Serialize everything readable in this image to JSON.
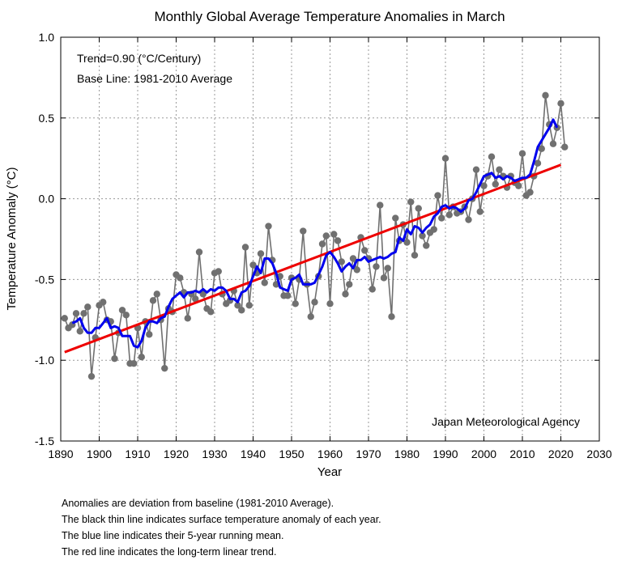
{
  "chart_data": {
    "type": "line",
    "title": "Monthly Global Average Temperature Anomalies in March",
    "xlabel": "Year",
    "ylabel": "Temperature Anomaly (°C)",
    "xlim": [
      1890,
      2030
    ],
    "ylim": [
      -1.5,
      1.0
    ],
    "xticks": [
      1890,
      1900,
      1910,
      1920,
      1930,
      1940,
      1950,
      1960,
      1970,
      1980,
      1990,
      2000,
      2010,
      2020,
      2030
    ],
    "yticks": [
      -1.5,
      -1.0,
      -0.5,
      0.0,
      0.5,
      1.0
    ],
    "xtick_labels": [
      "1890",
      "1900",
      "1910",
      "1920",
      "1930",
      "1940",
      "1950",
      "1960",
      "1970",
      "1980",
      "1990",
      "2000",
      "2010",
      "2020",
      "2030"
    ],
    "ytick_labels": [
      "-1.5",
      "-1.0",
      "-0.5",
      "0.0",
      "0.5",
      "1.0"
    ],
    "grid": true,
    "annotations": {
      "trend": "Trend=0.90 (°C/Century)",
      "baseline": "Base Line: 1981-2010 Average",
      "source": "Japan Meteorological Agency"
    },
    "series": [
      {
        "role": "annual",
        "color": "#707070",
        "x": [
          1891,
          1892,
          1893,
          1894,
          1895,
          1896,
          1897,
          1898,
          1899,
          1900,
          1901,
          1902,
          1903,
          1904,
          1905,
          1906,
          1907,
          1908,
          1909,
          1910,
          1911,
          1912,
          1913,
          1914,
          1915,
          1916,
          1917,
          1918,
          1919,
          1920,
          1921,
          1922,
          1923,
          1924,
          1925,
          1926,
          1927,
          1928,
          1929,
          1930,
          1931,
          1932,
          1933,
          1934,
          1935,
          1936,
          1937,
          1938,
          1939,
          1940,
          1941,
          1942,
          1943,
          1944,
          1945,
          1946,
          1947,
          1948,
          1949,
          1950,
          1951,
          1952,
          1953,
          1954,
          1955,
          1956,
          1957,
          1958,
          1959,
          1960,
          1961,
          1962,
          1963,
          1964,
          1965,
          1966,
          1967,
          1968,
          1969,
          1970,
          1971,
          1972,
          1973,
          1974,
          1975,
          1976,
          1977,
          1978,
          1979,
          1980,
          1981,
          1982,
          1983,
          1984,
          1985,
          1986,
          1987,
          1988,
          1989,
          1990,
          1991,
          1992,
          1993,
          1994,
          1995,
          1996,
          1997,
          1998,
          1999,
          2000,
          2001,
          2002,
          2003,
          2004,
          2005,
          2006,
          2007,
          2008,
          2009,
          2010,
          2011,
          2012,
          2013,
          2014,
          2015,
          2016,
          2017,
          2018,
          2019,
          2020,
          2021
        ],
        "y": [
          -0.74,
          -0.8,
          -0.78,
          -0.71,
          -0.82,
          -0.71,
          -0.67,
          -1.1,
          -0.86,
          -0.66,
          -0.64,
          -0.75,
          -0.76,
          -0.99,
          -0.83,
          -0.69,
          -0.72,
          -1.02,
          -1.02,
          -0.8,
          -0.98,
          -0.76,
          -0.84,
          -0.63,
          -0.59,
          -0.75,
          -1.05,
          -0.68,
          -0.7,
          -0.47,
          -0.49,
          -0.58,
          -0.74,
          -0.59,
          -0.62,
          -0.33,
          -0.59,
          -0.68,
          -0.7,
          -0.46,
          -0.45,
          -0.59,
          -0.65,
          -0.63,
          -0.57,
          -0.66,
          -0.69,
          -0.3,
          -0.66,
          -0.41,
          -0.46,
          -0.34,
          -0.52,
          -0.17,
          -0.38,
          -0.53,
          -0.48,
          -0.6,
          -0.6,
          -0.49,
          -0.65,
          -0.5,
          -0.2,
          -0.53,
          -0.73,
          -0.64,
          -0.48,
          -0.28,
          -0.23,
          -0.65,
          -0.22,
          -0.26,
          -0.39,
          -0.59,
          -0.53,
          -0.37,
          -0.44,
          -0.24,
          -0.32,
          -0.37,
          -0.56,
          -0.42,
          -0.04,
          -0.49,
          -0.43,
          -0.73,
          -0.12,
          -0.26,
          -0.16,
          -0.27,
          -0.02,
          -0.35,
          -0.06,
          -0.23,
          -0.29,
          -0.21,
          -0.19,
          0.02,
          -0.12,
          0.25,
          -0.1,
          -0.05,
          -0.09,
          -0.08,
          -0.05,
          -0.13,
          0.0,
          0.18,
          -0.08,
          0.08,
          0.14,
          0.26,
          0.09,
          0.18,
          0.14,
          0.07,
          0.14,
          0.1,
          0.08,
          0.28,
          0.02,
          0.04,
          0.14,
          0.22,
          0.31,
          0.64,
          0.46,
          0.34,
          0.44,
          0.59,
          0.32
        ]
      },
      {
        "role": "5-year running mean",
        "color": "#0000ee",
        "x": [
          1893,
          1894,
          1895,
          1896,
          1897,
          1898,
          1899,
          1900,
          1901,
          1902,
          1903,
          1904,
          1905,
          1906,
          1907,
          1908,
          1909,
          1910,
          1911,
          1912,
          1913,
          1914,
          1915,
          1916,
          1917,
          1918,
          1919,
          1920,
          1921,
          1922,
          1923,
          1924,
          1925,
          1926,
          1927,
          1928,
          1929,
          1930,
          1931,
          1932,
          1933,
          1934,
          1935,
          1936,
          1937,
          1938,
          1939,
          1940,
          1941,
          1942,
          1943,
          1944,
          1945,
          1946,
          1947,
          1948,
          1949,
          1950,
          1951,
          1952,
          1953,
          1954,
          1955,
          1956,
          1957,
          1958,
          1959,
          1960,
          1961,
          1962,
          1963,
          1964,
          1965,
          1966,
          1967,
          1968,
          1969,
          1970,
          1971,
          1972,
          1973,
          1974,
          1975,
          1976,
          1977,
          1978,
          1979,
          1980,
          1981,
          1982,
          1983,
          1984,
          1985,
          1986,
          1987,
          1988,
          1989,
          1990,
          1991,
          1992,
          1993,
          1994,
          1995,
          1996,
          1997,
          1998,
          1999,
          2000,
          2001,
          2002,
          2003,
          2004,
          2005,
          2006,
          2007,
          2008,
          2009,
          2010,
          2011,
          2012,
          2013,
          2014,
          2015,
          2016,
          2017,
          2018,
          2019
        ],
        "y": [
          -0.77,
          -0.76,
          -0.74,
          -0.8,
          -0.83,
          -0.83,
          -0.8,
          -0.8,
          -0.77,
          -0.74,
          -0.8,
          -0.79,
          -0.8,
          -0.85,
          -0.85,
          -0.85,
          -0.91,
          -0.92,
          -0.88,
          -0.8,
          -0.76,
          -0.76,
          -0.77,
          -0.74,
          -0.73,
          -0.67,
          -0.62,
          -0.6,
          -0.58,
          -0.61,
          -0.58,
          -0.58,
          -0.57,
          -0.58,
          -0.56,
          -0.58,
          -0.56,
          -0.57,
          -0.55,
          -0.55,
          -0.57,
          -0.62,
          -0.62,
          -0.64,
          -0.58,
          -0.57,
          -0.54,
          -0.48,
          -0.42,
          -0.46,
          -0.37,
          -0.37,
          -0.4,
          -0.46,
          -0.55,
          -0.56,
          -0.57,
          -0.5,
          -0.49,
          -0.47,
          -0.53,
          -0.53,
          -0.53,
          -0.52,
          -0.47,
          -0.42,
          -0.35,
          -0.33,
          -0.36,
          -0.4,
          -0.45,
          -0.42,
          -0.4,
          -0.43,
          -0.38,
          -0.38,
          -0.36,
          -0.39,
          -0.38,
          -0.37,
          -0.36,
          -0.37,
          -0.36,
          -0.34,
          -0.33,
          -0.24,
          -0.26,
          -0.19,
          -0.22,
          -0.17,
          -0.18,
          -0.21,
          -0.18,
          -0.16,
          -0.11,
          -0.09,
          -0.05,
          -0.04,
          -0.06,
          -0.05,
          -0.06,
          -0.08,
          -0.06,
          -0.01,
          0.0,
          0.04,
          0.09,
          0.14,
          0.15,
          0.16,
          0.13,
          0.14,
          0.12,
          0.14,
          0.13,
          0.11,
          0.12,
          0.13,
          0.13,
          0.15,
          0.23,
          0.32,
          0.36,
          0.4,
          0.44,
          0.49,
          0.44
        ]
      },
      {
        "role": "long-term linear trend",
        "color": "#ee0000",
        "x": [
          1891,
          2020
        ],
        "y": [
          -0.95,
          0.21
        ]
      }
    ]
  },
  "notes": [
    "Anomalies are deviation from baseline (1981-2010 Average).",
    "The black thin line indicates surface temperature anomaly of each year.",
    "The blue line indicates their 5-year running mean.",
    "The red line indicates the long-term linear trend."
  ]
}
